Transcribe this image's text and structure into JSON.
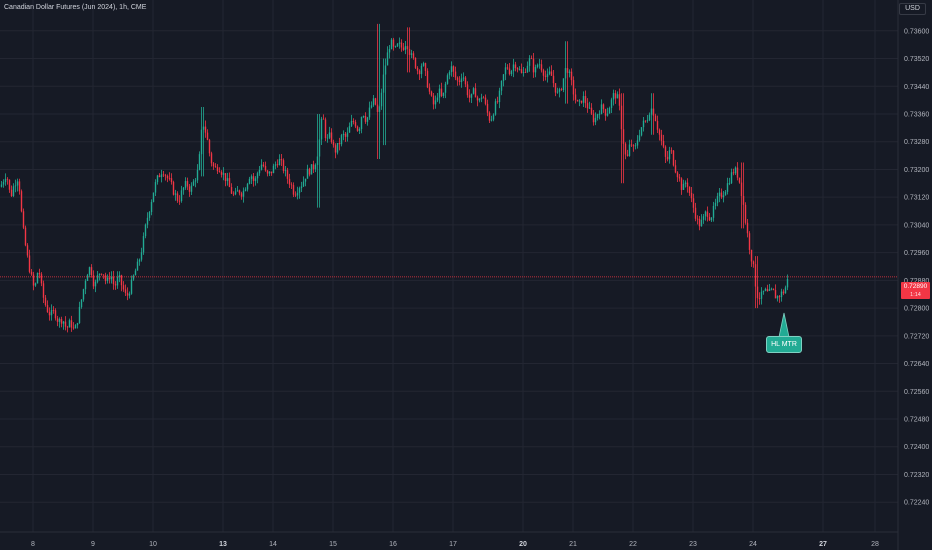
{
  "header": {
    "title": "Canadian Dollar Futures (Jun 2024), 1h, CME",
    "currency": "USD"
  },
  "price_tag": {
    "value": "0.72890",
    "countdown": "1:14"
  },
  "annotation": {
    "text": "HL MTR"
  },
  "colors": {
    "background": "#161a25",
    "grid": "#232632",
    "up": "#22ab94",
    "down": "#f23645",
    "text": "#b2b5be",
    "price_line": "#f23645",
    "note_bg": "#22ab94"
  },
  "chart_data": {
    "type": "candlestick",
    "title": "Canadian Dollar Futures (Jun 2024), 1h, CME",
    "ylim": [
      0.7218,
      0.7366
    ],
    "y_ticks": [
      "0.73600",
      "0.73520",
      "0.73440",
      "0.73360",
      "0.73280",
      "0.73200",
      "0.73120",
      "0.73040",
      "0.72960",
      "0.72880",
      "0.72800",
      "0.72720",
      "0.72640",
      "0.72560",
      "0.72480",
      "0.72400",
      "0.72320",
      "0.72240"
    ],
    "x_ticks": [
      {
        "label": "8",
        "bold": false
      },
      {
        "label": "9",
        "bold": false
      },
      {
        "label": "10",
        "bold": false
      },
      {
        "label": "13",
        "bold": true
      },
      {
        "label": "14",
        "bold": false
      },
      {
        "label": "15",
        "bold": false
      },
      {
        "label": "16",
        "bold": false
      },
      {
        "label": "17",
        "bold": false
      },
      {
        "label": "20",
        "bold": true
      },
      {
        "label": "21",
        "bold": false
      },
      {
        "label": "22",
        "bold": false
      },
      {
        "label": "23",
        "bold": false
      },
      {
        "label": "24",
        "bold": false
      },
      {
        "label": "27",
        "bold": true
      },
      {
        "label": "28",
        "bold": false
      }
    ],
    "last_price": 0.7289,
    "grid": true,
    "close_path": [
      [
        0,
        0.7315
      ],
      [
        6,
        0.7319
      ],
      [
        10,
        0.7312
      ],
      [
        14,
        0.7316
      ],
      [
        18,
        0.7318
      ],
      [
        22,
        0.7304
      ],
      [
        26,
        0.7296
      ],
      [
        30,
        0.729
      ],
      [
        34,
        0.7285
      ],
      [
        38,
        0.7292
      ],
      [
        42,
        0.7284
      ],
      [
        46,
        0.728
      ],
      [
        50,
        0.7278
      ],
      [
        54,
        0.7279
      ],
      [
        58,
        0.7276
      ],
      [
        62,
        0.7277
      ],
      [
        66,
        0.7274
      ],
      [
        70,
        0.7276
      ],
      [
        74,
        0.7273
      ],
      [
        78,
        0.7278
      ],
      [
        82,
        0.7284
      ],
      [
        86,
        0.729
      ],
      [
        90,
        0.7292
      ],
      [
        94,
        0.7286
      ],
      [
        98,
        0.729
      ],
      [
        102,
        0.7291
      ],
      [
        106,
        0.7287
      ],
      [
        110,
        0.729
      ],
      [
        114,
        0.7286
      ],
      [
        118,
        0.7289
      ],
      [
        122,
        0.7286
      ],
      [
        126,
        0.7283
      ],
      [
        130,
        0.7286
      ],
      [
        134,
        0.729
      ],
      [
        138,
        0.7293
      ],
      [
        142,
        0.7298
      ],
      [
        146,
        0.7305
      ],
      [
        150,
        0.731
      ],
      [
        154,
        0.7315
      ],
      [
        158,
        0.7318
      ],
      [
        162,
        0.732
      ],
      [
        166,
        0.7318
      ],
      [
        170,
        0.7316
      ],
      [
        174,
        0.7313
      ],
      [
        178,
        0.7311
      ],
      [
        182,
        0.7314
      ],
      [
        186,
        0.7316
      ],
      [
        190,
        0.7314
      ],
      [
        194,
        0.7317
      ],
      [
        198,
        0.732
      ],
      [
        202,
        0.7334
      ],
      [
        206,
        0.733
      ],
      [
        210,
        0.7323
      ],
      [
        214,
        0.732
      ],
      [
        218,
        0.7321
      ],
      [
        222,
        0.7319
      ],
      [
        226,
        0.7317
      ],
      [
        230,
        0.7314
      ],
      [
        234,
        0.7312
      ],
      [
        238,
        0.7314
      ],
      [
        242,
        0.7313
      ],
      [
        246,
        0.7316
      ],
      [
        250,
        0.7319
      ],
      [
        254,
        0.7316
      ],
      [
        258,
        0.732
      ],
      [
        262,
        0.7322
      ],
      [
        266,
        0.7318
      ],
      [
        270,
        0.7319
      ],
      [
        274,
        0.7321
      ],
      [
        278,
        0.7323
      ],
      [
        282,
        0.7321
      ],
      [
        286,
        0.7318
      ],
      [
        290,
        0.7316
      ],
      [
        294,
        0.7313
      ],
      [
        298,
        0.7315
      ],
      [
        302,
        0.7316
      ],
      [
        306,
        0.7319
      ],
      [
        310,
        0.732
      ],
      [
        314,
        0.7321
      ],
      [
        318,
        0.7326
      ],
      [
        322,
        0.7336
      ],
      [
        326,
        0.7328
      ],
      [
        330,
        0.733
      ],
      [
        334,
        0.7325
      ],
      [
        338,
        0.7327
      ],
      [
        342,
        0.733
      ],
      [
        346,
        0.7329
      ],
      [
        350,
        0.7333
      ],
      [
        354,
        0.7334
      ],
      [
        358,
        0.7331
      ],
      [
        362,
        0.7337
      ],
      [
        366,
        0.7334
      ],
      [
        370,
        0.7338
      ],
      [
        374,
        0.734
      ],
      [
        378,
        0.7335
      ],
      [
        382,
        0.7345
      ],
      [
        386,
        0.7352
      ],
      [
        390,
        0.7357
      ],
      [
        394,
        0.7354
      ],
      [
        398,
        0.7356
      ],
      [
        402,
        0.7355
      ],
      [
        406,
        0.7357
      ],
      [
        410,
        0.7353
      ],
      [
        414,
        0.7351
      ],
      [
        418,
        0.7348
      ],
      [
        422,
        0.7351
      ],
      [
        426,
        0.7346
      ],
      [
        430,
        0.7341
      ],
      [
        434,
        0.7338
      ],
      [
        438,
        0.7343
      ],
      [
        442,
        0.734
      ],
      [
        446,
        0.7346
      ],
      [
        450,
        0.735
      ],
      [
        454,
        0.7347
      ],
      [
        458,
        0.7345
      ],
      [
        462,
        0.7348
      ],
      [
        466,
        0.7343
      ],
      [
        470,
        0.734
      ],
      [
        474,
        0.7343
      ],
      [
        478,
        0.7339
      ],
      [
        482,
        0.7342
      ],
      [
        486,
        0.7337
      ],
      [
        490,
        0.7334
      ],
      [
        494,
        0.7338
      ],
      [
        498,
        0.734
      ],
      [
        502,
        0.7346
      ],
      [
        506,
        0.735
      ],
      [
        510,
        0.7348
      ],
      [
        514,
        0.7351
      ],
      [
        518,
        0.7349
      ],
      [
        522,
        0.7347
      ],
      [
        526,
        0.735
      ],
      [
        530,
        0.7352
      ],
      [
        534,
        0.7348
      ],
      [
        538,
        0.7351
      ],
      [
        542,
        0.7349
      ],
      [
        546,
        0.7346
      ],
      [
        550,
        0.7348
      ],
      [
        554,
        0.7344
      ],
      [
        558,
        0.7341
      ],
      [
        562,
        0.7345
      ],
      [
        566,
        0.735
      ],
      [
        570,
        0.7346
      ],
      [
        574,
        0.7341
      ],
      [
        578,
        0.7338
      ],
      [
        582,
        0.7341
      ],
      [
        586,
        0.7339
      ],
      [
        590,
        0.7336
      ],
      [
        594,
        0.7334
      ],
      [
        598,
        0.7337
      ],
      [
        602,
        0.7338
      ],
      [
        606,
        0.7336
      ],
      [
        610,
        0.7339
      ],
      [
        614,
        0.7342
      ],
      [
        618,
        0.734
      ],
      [
        622,
        0.733
      ],
      [
        626,
        0.7322
      ],
      [
        630,
        0.7328
      ],
      [
        634,
        0.7325
      ],
      [
        638,
        0.733
      ],
      [
        642,
        0.7333
      ],
      [
        646,
        0.7334
      ],
      [
        650,
        0.7338
      ],
      [
        654,
        0.7336
      ],
      [
        658,
        0.7331
      ],
      [
        662,
        0.7327
      ],
      [
        666,
        0.7322
      ],
      [
        670,
        0.7326
      ],
      [
        674,
        0.7321
      ],
      [
        678,
        0.7318
      ],
      [
        682,
        0.7314
      ],
      [
        686,
        0.7317
      ],
      [
        690,
        0.7312
      ],
      [
        694,
        0.7308
      ],
      [
        698,
        0.7304
      ],
      [
        702,
        0.7305
      ],
      [
        706,
        0.7308
      ],
      [
        710,
        0.7306
      ],
      [
        714,
        0.7309
      ],
      [
        718,
        0.7312
      ],
      [
        722,
        0.7313
      ],
      [
        726,
        0.7315
      ],
      [
        730,
        0.7318
      ],
      [
        734,
        0.732
      ],
      [
        738,
        0.7318
      ],
      [
        742,
        0.7312
      ],
      [
        746,
        0.7303
      ],
      [
        750,
        0.7296
      ],
      [
        754,
        0.729
      ],
      [
        756,
        0.7284
      ],
      [
        760,
        0.7283
      ],
      [
        764,
        0.7285
      ],
      [
        768,
        0.7284
      ],
      [
        772,
        0.7285
      ],
      [
        776,
        0.7283
      ],
      [
        780,
        0.7284
      ],
      [
        784,
        0.7285
      ],
      [
        788,
        0.7289
      ]
    ],
    "spikes": [
      {
        "x": 202,
        "high": 0.7338,
        "low": 0.7318
      },
      {
        "x": 318,
        "high": 0.7336,
        "low": 0.7309
      },
      {
        "x": 378,
        "high": 0.7362,
        "low": 0.7323
      },
      {
        "x": 384,
        "high": 0.7352,
        "low": 0.7327
      },
      {
        "x": 408,
        "high": 0.7361,
        "low": 0.7348
      },
      {
        "x": 566,
        "high": 0.7357,
        "low": 0.7339
      },
      {
        "x": 622,
        "high": 0.7342,
        "low": 0.7316
      },
      {
        "x": 652,
        "high": 0.7342,
        "low": 0.733
      },
      {
        "x": 742,
        "high": 0.7322,
        "low": 0.7303
      },
      {
        "x": 756,
        "high": 0.7295,
        "low": 0.728
      }
    ]
  }
}
